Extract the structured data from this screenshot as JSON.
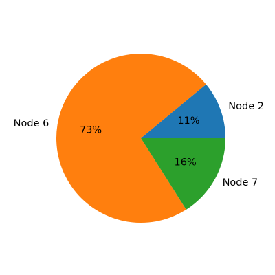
{
  "chart_data": {
    "type": "pie",
    "labels": [
      "Node 2",
      "Node 6",
      "Node 7"
    ],
    "values": [
      11,
      73,
      16
    ],
    "value_labels": [
      "11%",
      "73%",
      "16%"
    ],
    "colors": [
      "#1f77b4",
      "#ff7f0e",
      "#2ca02c"
    ],
    "start_angle_deg": 0,
    "direction": "counterclockwise",
    "title": "",
    "legend": "none"
  }
}
